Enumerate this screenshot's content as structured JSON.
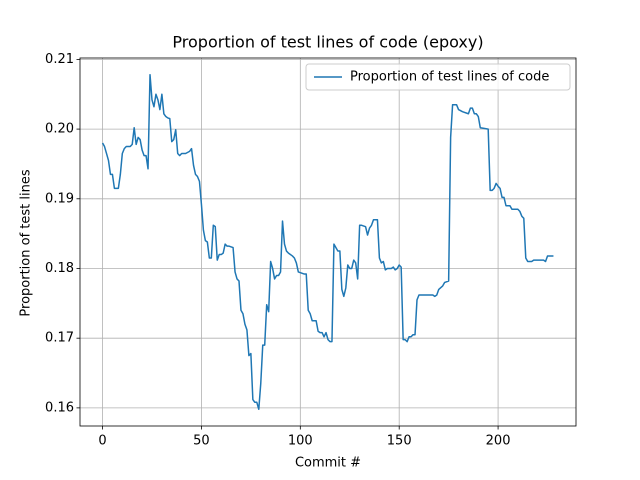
{
  "chart_data": {
    "type": "line",
    "title": "Proportion of test lines of code (epoxy)",
    "x_label": "Commit #",
    "y_label": "Proportion of test lines",
    "x": [
      0,
      1,
      2,
      3,
      4,
      5,
      6,
      7,
      8,
      9,
      10,
      11,
      12,
      13,
      14,
      15,
      16,
      17,
      18,
      19,
      20,
      21,
      22,
      23,
      24,
      25,
      26,
      27,
      28,
      29,
      30,
      31,
      32,
      33,
      34,
      35,
      36,
      37,
      38,
      39,
      40,
      42,
      44,
      45,
      46,
      47,
      48,
      49,
      50,
      51,
      52,
      53,
      54,
      55,
      56,
      57,
      58,
      59,
      60,
      61,
      62,
      63,
      64,
      66,
      67,
      68,
      69,
      70,
      71,
      72,
      73,
      74,
      75,
      76,
      77,
      78,
      79,
      80,
      81,
      82,
      83,
      84,
      85,
      86,
      87,
      88,
      89,
      90,
      91,
      92,
      93,
      94,
      96,
      97,
      98,
      99,
      102,
      103,
      104,
      105,
      106,
      108,
      109,
      110,
      111,
      112,
      113,
      114,
      115,
      116,
      117,
      118,
      119,
      120,
      121,
      122,
      123,
      124,
      125,
      126,
      127,
      128,
      129,
      130,
      131,
      133,
      134,
      135,
      136,
      137,
      139,
      140,
      141,
      142,
      143,
      144,
      145,
      146,
      147,
      148,
      149,
      150,
      151,
      152,
      153,
      154,
      155,
      156,
      157,
      158,
      159,
      160,
      162,
      165,
      167,
      168,
      169,
      170,
      172,
      173,
      175,
      176,
      177,
      179,
      180,
      182,
      185,
      186,
      187,
      188,
      189,
      190,
      191,
      195,
      196,
      197,
      198,
      199,
      200,
      201,
      202,
      203,
      204,
      206,
      207,
      210,
      211,
      212,
      213,
      214,
      215,
      217,
      218,
      220,
      223,
      224,
      225,
      228
    ],
    "series": [
      {
        "name": "Proportion of test lines of code",
        "color": "#1f77b4",
        "values": [
          0.198,
          0.1975,
          0.1965,
          0.1955,
          0.1935,
          0.1935,
          0.1915,
          0.1915,
          0.1915,
          0.1935,
          0.1965,
          0.1972,
          0.1975,
          0.1975,
          0.1975,
          0.1978,
          0.2002,
          0.1978,
          0.1988,
          0.1985,
          0.197,
          0.1962,
          0.1962,
          0.1943,
          0.2078,
          0.2042,
          0.2032,
          0.205,
          0.2042,
          0.2028,
          0.205,
          0.2022,
          0.2018,
          0.2016,
          0.2015,
          0.1982,
          0.1985,
          0.1999,
          0.1965,
          0.1962,
          0.1965,
          0.1965,
          0.1968,
          0.1972,
          0.1948,
          0.1935,
          0.1932,
          0.1925,
          0.1892,
          0.1855,
          0.184,
          0.1838,
          0.1815,
          0.1815,
          0.1862,
          0.186,
          0.1812,
          0.182,
          0.182,
          0.1822,
          0.1835,
          0.1832,
          0.1832,
          0.183,
          0.1795,
          0.1785,
          0.1782,
          0.174,
          0.1735,
          0.172,
          0.1712,
          0.1675,
          0.1678,
          0.1612,
          0.1608,
          0.1608,
          0.1598,
          0.1635,
          0.169,
          0.169,
          0.1748,
          0.1738,
          0.181,
          0.18,
          0.1785,
          0.179,
          0.179,
          0.1795,
          0.1868,
          0.1835,
          0.1825,
          0.1822,
          0.1818,
          0.1815,
          0.1808,
          0.1795,
          0.1792,
          0.1792,
          0.174,
          0.1735,
          0.1725,
          0.1725,
          0.171,
          0.1708,
          0.1708,
          0.1702,
          0.1708,
          0.1698,
          0.1695,
          0.1695,
          0.1835,
          0.183,
          0.1825,
          0.1825,
          0.177,
          0.176,
          0.1772,
          0.1805,
          0.18,
          0.18,
          0.1812,
          0.1808,
          0.1785,
          0.1862,
          0.1862,
          0.186,
          0.1848,
          0.1858,
          0.1862,
          0.187,
          0.187,
          0.1815,
          0.1808,
          0.181,
          0.1798,
          0.18,
          0.18,
          0.18,
          0.1802,
          0.1798,
          0.18,
          0.1805,
          0.1802,
          0.1698,
          0.1698,
          0.1695,
          0.1702,
          0.1702,
          0.1705,
          0.1705,
          0.1755,
          0.1762,
          0.1762,
          0.1762,
          0.1762,
          0.176,
          0.1762,
          0.177,
          0.1775,
          0.178,
          0.1782,
          0.1988,
          0.2035,
          0.2035,
          0.2028,
          0.2025,
          0.2022,
          0.203,
          0.203,
          0.2022,
          0.2022,
          0.2018,
          0.2002,
          0.2,
          0.1912,
          0.1912,
          0.1915,
          0.1922,
          0.1918,
          0.1915,
          0.1902,
          0.1902,
          0.189,
          0.189,
          0.1885,
          0.1885,
          0.1882,
          0.1875,
          0.1872,
          0.1815,
          0.181,
          0.181,
          0.1812,
          0.1812,
          0.1812,
          0.181,
          0.1818,
          0.1818
        ]
      }
    ],
    "xlim": [
      -11.4,
      239.4
    ],
    "ylim": [
      0.1574,
      0.2102
    ],
    "xticks": [
      0,
      50,
      100,
      150,
      200
    ],
    "yticks": [
      0.16,
      0.17,
      0.18,
      0.19,
      {
        "value": 0.2,
        "label": "0.20"
      },
      0.21
    ],
    "grid": true,
    "legend": "upper right"
  }
}
